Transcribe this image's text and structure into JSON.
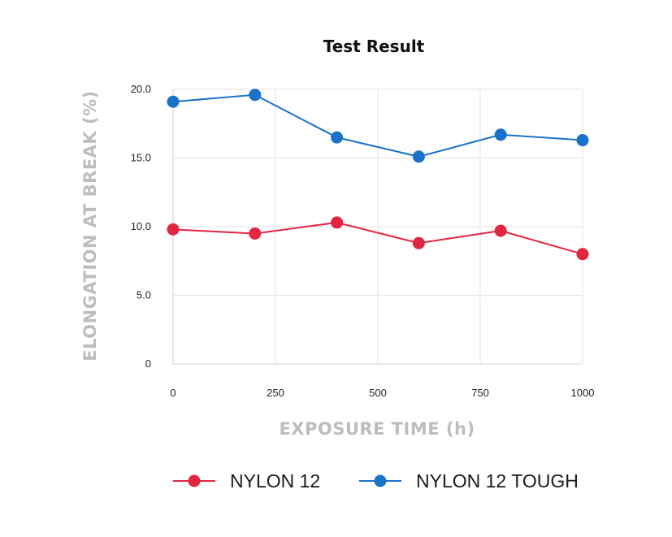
{
  "chart_data": {
    "type": "line",
    "title": "Test Result",
    "xlabel": "EXPOSURE TIME (h)",
    "ylabel": "ELONGATION AT BREAK (%)",
    "xlim": [
      0,
      1000
    ],
    "ylim": [
      0,
      20
    ],
    "x_ticks": [
      "0",
      "250",
      "500",
      "750",
      "1000"
    ],
    "y_ticks": [
      "0",
      "5.0",
      "10.0",
      "15.0",
      "20.0"
    ],
    "x": [
      0,
      200,
      400,
      600,
      800,
      1000
    ],
    "grid": true,
    "legend_position": "bottom",
    "series": [
      {
        "name": "NYLON 12",
        "color": "#e3263f",
        "values": [
          9.8,
          9.5,
          10.3,
          8.8,
          9.7,
          8.0
        ]
      },
      {
        "name": "NYLON 12 TOUGH",
        "color": "#1a72c9",
        "values": [
          19.1,
          19.6,
          16.5,
          15.1,
          16.7,
          16.3
        ]
      }
    ]
  }
}
